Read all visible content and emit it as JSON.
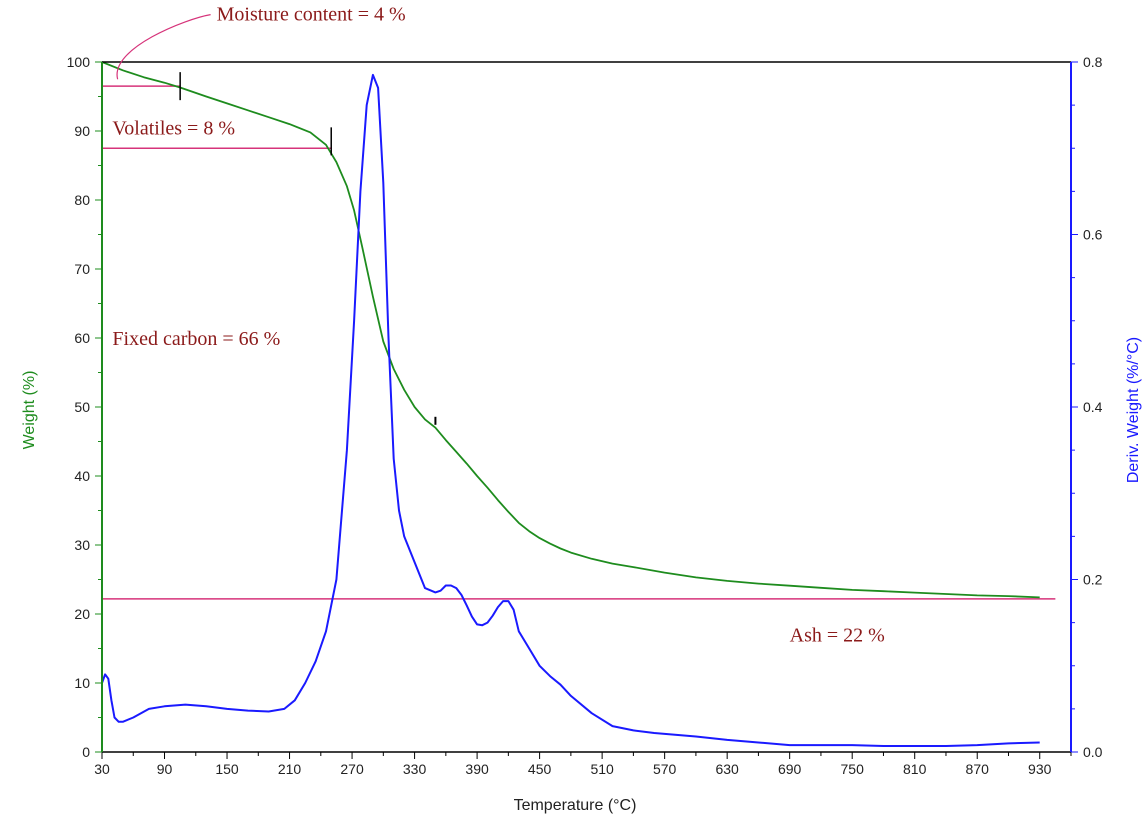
{
  "chart_data": {
    "type": "line",
    "xlabel": "Temperature (°C)",
    "ylabel_left": "Weight (%)",
    "ylabel_right": "Deriv. Weight (%/°C)",
    "xlim": [
      30,
      960
    ],
    "ylim_left": [
      0,
      100
    ],
    "ylim_right": [
      0,
      0.8
    ],
    "x_ticks": [
      30,
      90,
      150,
      210,
      270,
      330,
      390,
      450,
      510,
      570,
      630,
      690,
      750,
      810,
      870,
      930
    ],
    "y_ticks_left": [
      0,
      10,
      20,
      30,
      40,
      50,
      60,
      70,
      80,
      90,
      100
    ],
    "y_ticks_right": [
      "0.0",
      "0.2",
      "0.4",
      "0.6",
      "0.8"
    ],
    "grid": false,
    "colors": {
      "weight": "#1e8c1e",
      "deriv": "#1a1aff",
      "annotation_line": "#d6337a",
      "annotation_text": "#8b1a1a",
      "left_axis": "#1e8c1e",
      "right_axis": "#1a1aff"
    },
    "series": [
      {
        "name": "Weight (%)",
        "axis": "left",
        "x": [
          30,
          50,
          70,
          90,
          105,
          130,
          150,
          170,
          190,
          210,
          230,
          245,
          255,
          265,
          272,
          280,
          290,
          300,
          310,
          320,
          330,
          340,
          350,
          360,
          370,
          380,
          390,
          400,
          410,
          420,
          430,
          440,
          450,
          460,
          470,
          480,
          500,
          520,
          540,
          570,
          600,
          630,
          660,
          690,
          720,
          750,
          780,
          810,
          840,
          870,
          900,
          930
        ],
        "y": [
          100,
          98.8,
          97.8,
          97.0,
          96.3,
          95.0,
          94.0,
          93.0,
          92.0,
          91.0,
          89.8,
          88.0,
          85.5,
          82.0,
          78.5,
          73.0,
          66.0,
          59.5,
          55.5,
          52.5,
          50.0,
          48.2,
          47.0,
          45.2,
          43.5,
          41.8,
          40.0,
          38.3,
          36.5,
          34.8,
          33.2,
          32.0,
          31.0,
          30.2,
          29.5,
          28.9,
          28.0,
          27.3,
          26.8,
          26.0,
          25.3,
          24.8,
          24.4,
          24.1,
          23.8,
          23.5,
          23.3,
          23.1,
          22.9,
          22.7,
          22.6,
          22.4
        ]
      },
      {
        "name": "Deriv. Weight (%/°C)",
        "axis": "right",
        "x": [
          30,
          33,
          36,
          39,
          42,
          46,
          50,
          60,
          75,
          90,
          110,
          130,
          150,
          170,
          190,
          205,
          215,
          225,
          235,
          245,
          255,
          265,
          272,
          278,
          284,
          290,
          295,
          300,
          305,
          310,
          315,
          320,
          330,
          340,
          350,
          355,
          360,
          365,
          370,
          375,
          380,
          385,
          390,
          395,
          400,
          405,
          410,
          415,
          420,
          425,
          430,
          440,
          450,
          460,
          470,
          480,
          500,
          520,
          540,
          560,
          580,
          600,
          630,
          660,
          690,
          720,
          750,
          780,
          810,
          840,
          870,
          900,
          930
        ],
        "y": [
          0.08,
          0.09,
          0.085,
          0.06,
          0.04,
          0.035,
          0.035,
          0.04,
          0.05,
          0.053,
          0.055,
          0.053,
          0.05,
          0.048,
          0.047,
          0.05,
          0.06,
          0.08,
          0.105,
          0.14,
          0.2,
          0.35,
          0.5,
          0.65,
          0.75,
          0.785,
          0.77,
          0.66,
          0.48,
          0.34,
          0.28,
          0.25,
          0.22,
          0.19,
          0.185,
          0.187,
          0.193,
          0.193,
          0.19,
          0.182,
          0.17,
          0.157,
          0.148,
          0.147,
          0.15,
          0.158,
          0.168,
          0.175,
          0.175,
          0.165,
          0.14,
          0.12,
          0.1,
          0.088,
          0.078,
          0.065,
          0.045,
          0.03,
          0.025,
          0.022,
          0.02,
          0.018,
          0.014,
          0.011,
          0.008,
          0.008,
          0.008,
          0.007,
          0.007,
          0.007,
          0.008,
          0.01,
          0.011
        ]
      }
    ],
    "reference_lines": [
      {
        "axis": "left",
        "y": 96.5,
        "x_from": 30,
        "x_to": 105
      },
      {
        "axis": "left",
        "y": 87.5,
        "x_from": 30,
        "x_to": 250
      },
      {
        "axis": "left",
        "y": 22.2,
        "x_from": 30,
        "x_to": 945
      }
    ],
    "markers": [
      {
        "axis": "left",
        "x": 105,
        "y": 96.5
      },
      {
        "axis": "left",
        "x": 250,
        "y": 88.5
      },
      {
        "axis": "left",
        "x": 350,
        "y": 48.0
      }
    ],
    "annotations": [
      {
        "text": "Moisture content = 4 %",
        "x": 140,
        "y": 106
      },
      {
        "text": "Volatiles = 8 %",
        "x": 40,
        "y": 89.5
      },
      {
        "text": "Fixed carbon = 66 %",
        "x": 40,
        "y": 59
      },
      {
        "text": "Ash = 22 %",
        "x": 690,
        "y": 16
      }
    ]
  }
}
